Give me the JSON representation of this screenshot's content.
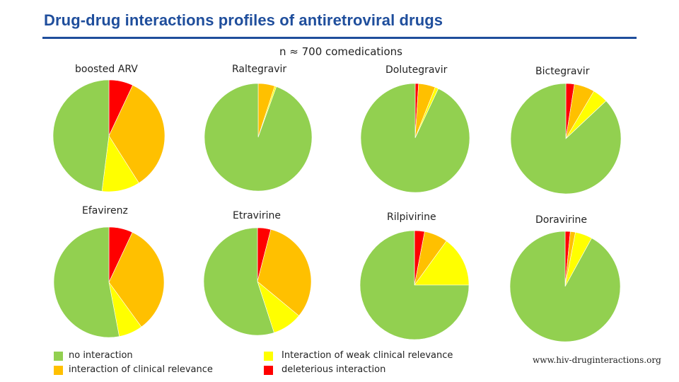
{
  "title": "Drug-drug interactions profiles of antiretroviral drugs",
  "subtitle": "n ≈ 700 comedications",
  "colors": {
    "no_interaction": "#92d050",
    "clinical_relevance": "#ffc000",
    "weak_clinical_relevance": "#ffff00",
    "deleterious": "#ff0000"
  },
  "legend": {
    "no_interaction": "no interaction",
    "clinical_relevance": "interaction of clinical relevance",
    "weak_clinical_relevance": "Interaction of weak clinical relevance",
    "deleterious": "deleterious interaction"
  },
  "source": "www.hiv-druginteractions.org",
  "chart_data": [
    {
      "type": "pie",
      "title": "boosted ARV",
      "slices": [
        {
          "category": "deleterious",
          "value": 7
        },
        {
          "category": "clinical_relevance",
          "value": 34
        },
        {
          "category": "weak_clinical_relevance",
          "value": 11
        },
        {
          "category": "no_interaction",
          "value": 48
        }
      ]
    },
    {
      "type": "pie",
      "title": "Raltegravir",
      "slices": [
        {
          "category": "deleterious",
          "value": 0
        },
        {
          "category": "clinical_relevance",
          "value": 5
        },
        {
          "category": "weak_clinical_relevance",
          "value": 0.5
        },
        {
          "category": "no_interaction",
          "value": 94.5
        }
      ]
    },
    {
      "type": "pie",
      "title": "Dolutegravir",
      "slices": [
        {
          "category": "deleterious",
          "value": 1
        },
        {
          "category": "clinical_relevance",
          "value": 5
        },
        {
          "category": "weak_clinical_relevance",
          "value": 1
        },
        {
          "category": "no_interaction",
          "value": 93
        }
      ]
    },
    {
      "type": "pie",
      "title": "Bictegravir",
      "slices": [
        {
          "category": "deleterious",
          "value": 2.5
        },
        {
          "category": "clinical_relevance",
          "value": 6
        },
        {
          "category": "weak_clinical_relevance",
          "value": 4.5
        },
        {
          "category": "no_interaction",
          "value": 87
        }
      ]
    },
    {
      "type": "pie",
      "title": "Efavirenz",
      "slices": [
        {
          "category": "deleterious",
          "value": 7
        },
        {
          "category": "clinical_relevance",
          "value": 33
        },
        {
          "category": "weak_clinical_relevance",
          "value": 7
        },
        {
          "category": "no_interaction",
          "value": 53
        }
      ]
    },
    {
      "type": "pie",
      "title": "Etravirine",
      "slices": [
        {
          "category": "deleterious",
          "value": 4
        },
        {
          "category": "clinical_relevance",
          "value": 32
        },
        {
          "category": "weak_clinical_relevance",
          "value": 9
        },
        {
          "category": "no_interaction",
          "value": 55
        }
      ]
    },
    {
      "type": "pie",
      "title": "Rilpivirine",
      "slices": [
        {
          "category": "deleterious",
          "value": 3
        },
        {
          "category": "clinical_relevance",
          "value": 7
        },
        {
          "category": "weak_clinical_relevance",
          "value": 15
        },
        {
          "category": "no_interaction",
          "value": 75
        }
      ]
    },
    {
      "type": "pie",
      "title": "Doravirine",
      "slices": [
        {
          "category": "deleterious",
          "value": 1.5
        },
        {
          "category": "clinical_relevance",
          "value": 1.5
        },
        {
          "category": "weak_clinical_relevance",
          "value": 5
        },
        {
          "category": "no_interaction",
          "value": 92
        }
      ]
    }
  ]
}
